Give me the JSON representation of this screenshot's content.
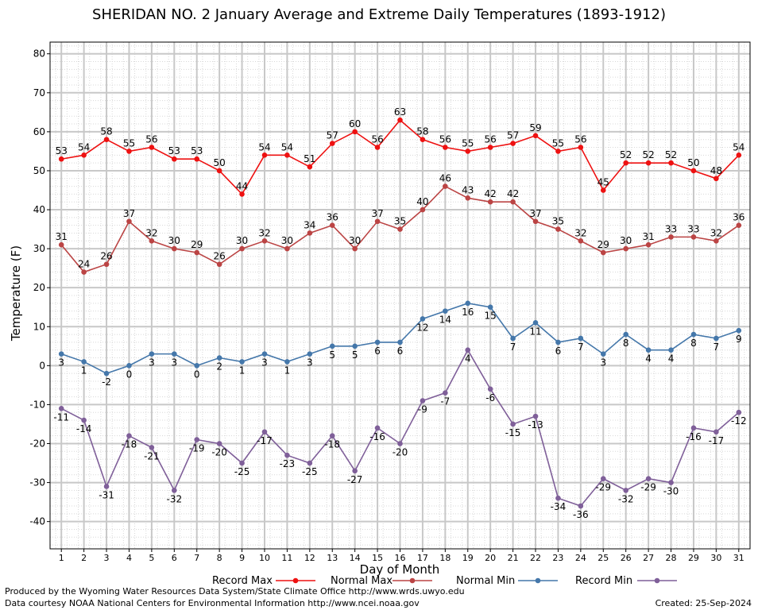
{
  "colors": {
    "record_max": "#ee1111",
    "normal_max": "#bb4444",
    "normal_min": "#4477aa",
    "record_min": "#7f5f99",
    "grid_major": "#c8c8c8",
    "grid_minor": "#d8d8d8"
  },
  "footer": {
    "produced_by": "Produced by the Wyoming Water Resources Data System/State Climate Office http://www.wrds.uwyo.edu",
    "courtesy": "Data courtesy NOAA National Centers for Environmental Information http://www.ncei.noaa.gov",
    "created": "Created:  25-Sep-2024"
  },
  "chart_data": {
    "type": "line",
    "title": "SHERIDAN NO. 2 January Average and Extreme Daily Temperatures (1893-1912)",
    "xlabel": "Day of Month",
    "ylabel": "Temperature (F)",
    "ylim": [
      -47,
      83
    ],
    "yticks": [
      -40,
      -30,
      -20,
      -10,
      0,
      10,
      20,
      30,
      40,
      50,
      60,
      70,
      80
    ],
    "x": [
      1,
      2,
      3,
      4,
      5,
      6,
      7,
      8,
      9,
      10,
      11,
      12,
      13,
      14,
      15,
      16,
      17,
      18,
      19,
      20,
      21,
      22,
      23,
      24,
      25,
      26,
      27,
      28,
      29,
      30,
      31
    ],
    "grid": true,
    "legend": "bottom",
    "series": [
      {
        "name": "Record Max",
        "color_key": "record_max",
        "label_pos": "above",
        "values": [
          53,
          54,
          58,
          55,
          56,
          53,
          53,
          50,
          44,
          54,
          54,
          51,
          57,
          60,
          56,
          63,
          58,
          56,
          55,
          56,
          57,
          59,
          55,
          56,
          45,
          52,
          52,
          52,
          50,
          48,
          54
        ]
      },
      {
        "name": "Normal Max",
        "color_key": "normal_max",
        "label_pos": "above",
        "values": [
          31,
          24,
          26,
          37,
          32,
          30,
          29,
          26,
          30,
          32,
          30,
          34,
          36,
          30,
          37,
          35,
          40,
          46,
          43,
          42,
          42,
          37,
          35,
          32,
          29,
          30,
          31,
          33,
          33,
          32,
          36
        ]
      },
      {
        "name": "Normal Min",
        "color_key": "normal_min",
        "label_pos": "below",
        "values": [
          3,
          1,
          -2,
          0,
          3,
          3,
          0,
          2,
          1,
          3,
          1,
          3,
          5,
          5,
          6,
          6,
          12,
          14,
          16,
          15,
          7,
          11,
          6,
          7,
          3,
          8,
          4,
          4,
          8,
          7,
          9
        ]
      },
      {
        "name": "Record Min",
        "color_key": "record_min",
        "label_pos": "below",
        "values": [
          -11,
          -14,
          -31,
          -18,
          -21,
          -32,
          -19,
          -20,
          -25,
          -17,
          -23,
          -25,
          -18,
          -27,
          -16,
          -20,
          -9,
          -7,
          4,
          -6,
          -15,
          -13,
          -34,
          -36,
          -29,
          -32,
          -29,
          -30,
          -16,
          -17,
          -12
        ]
      }
    ]
  }
}
